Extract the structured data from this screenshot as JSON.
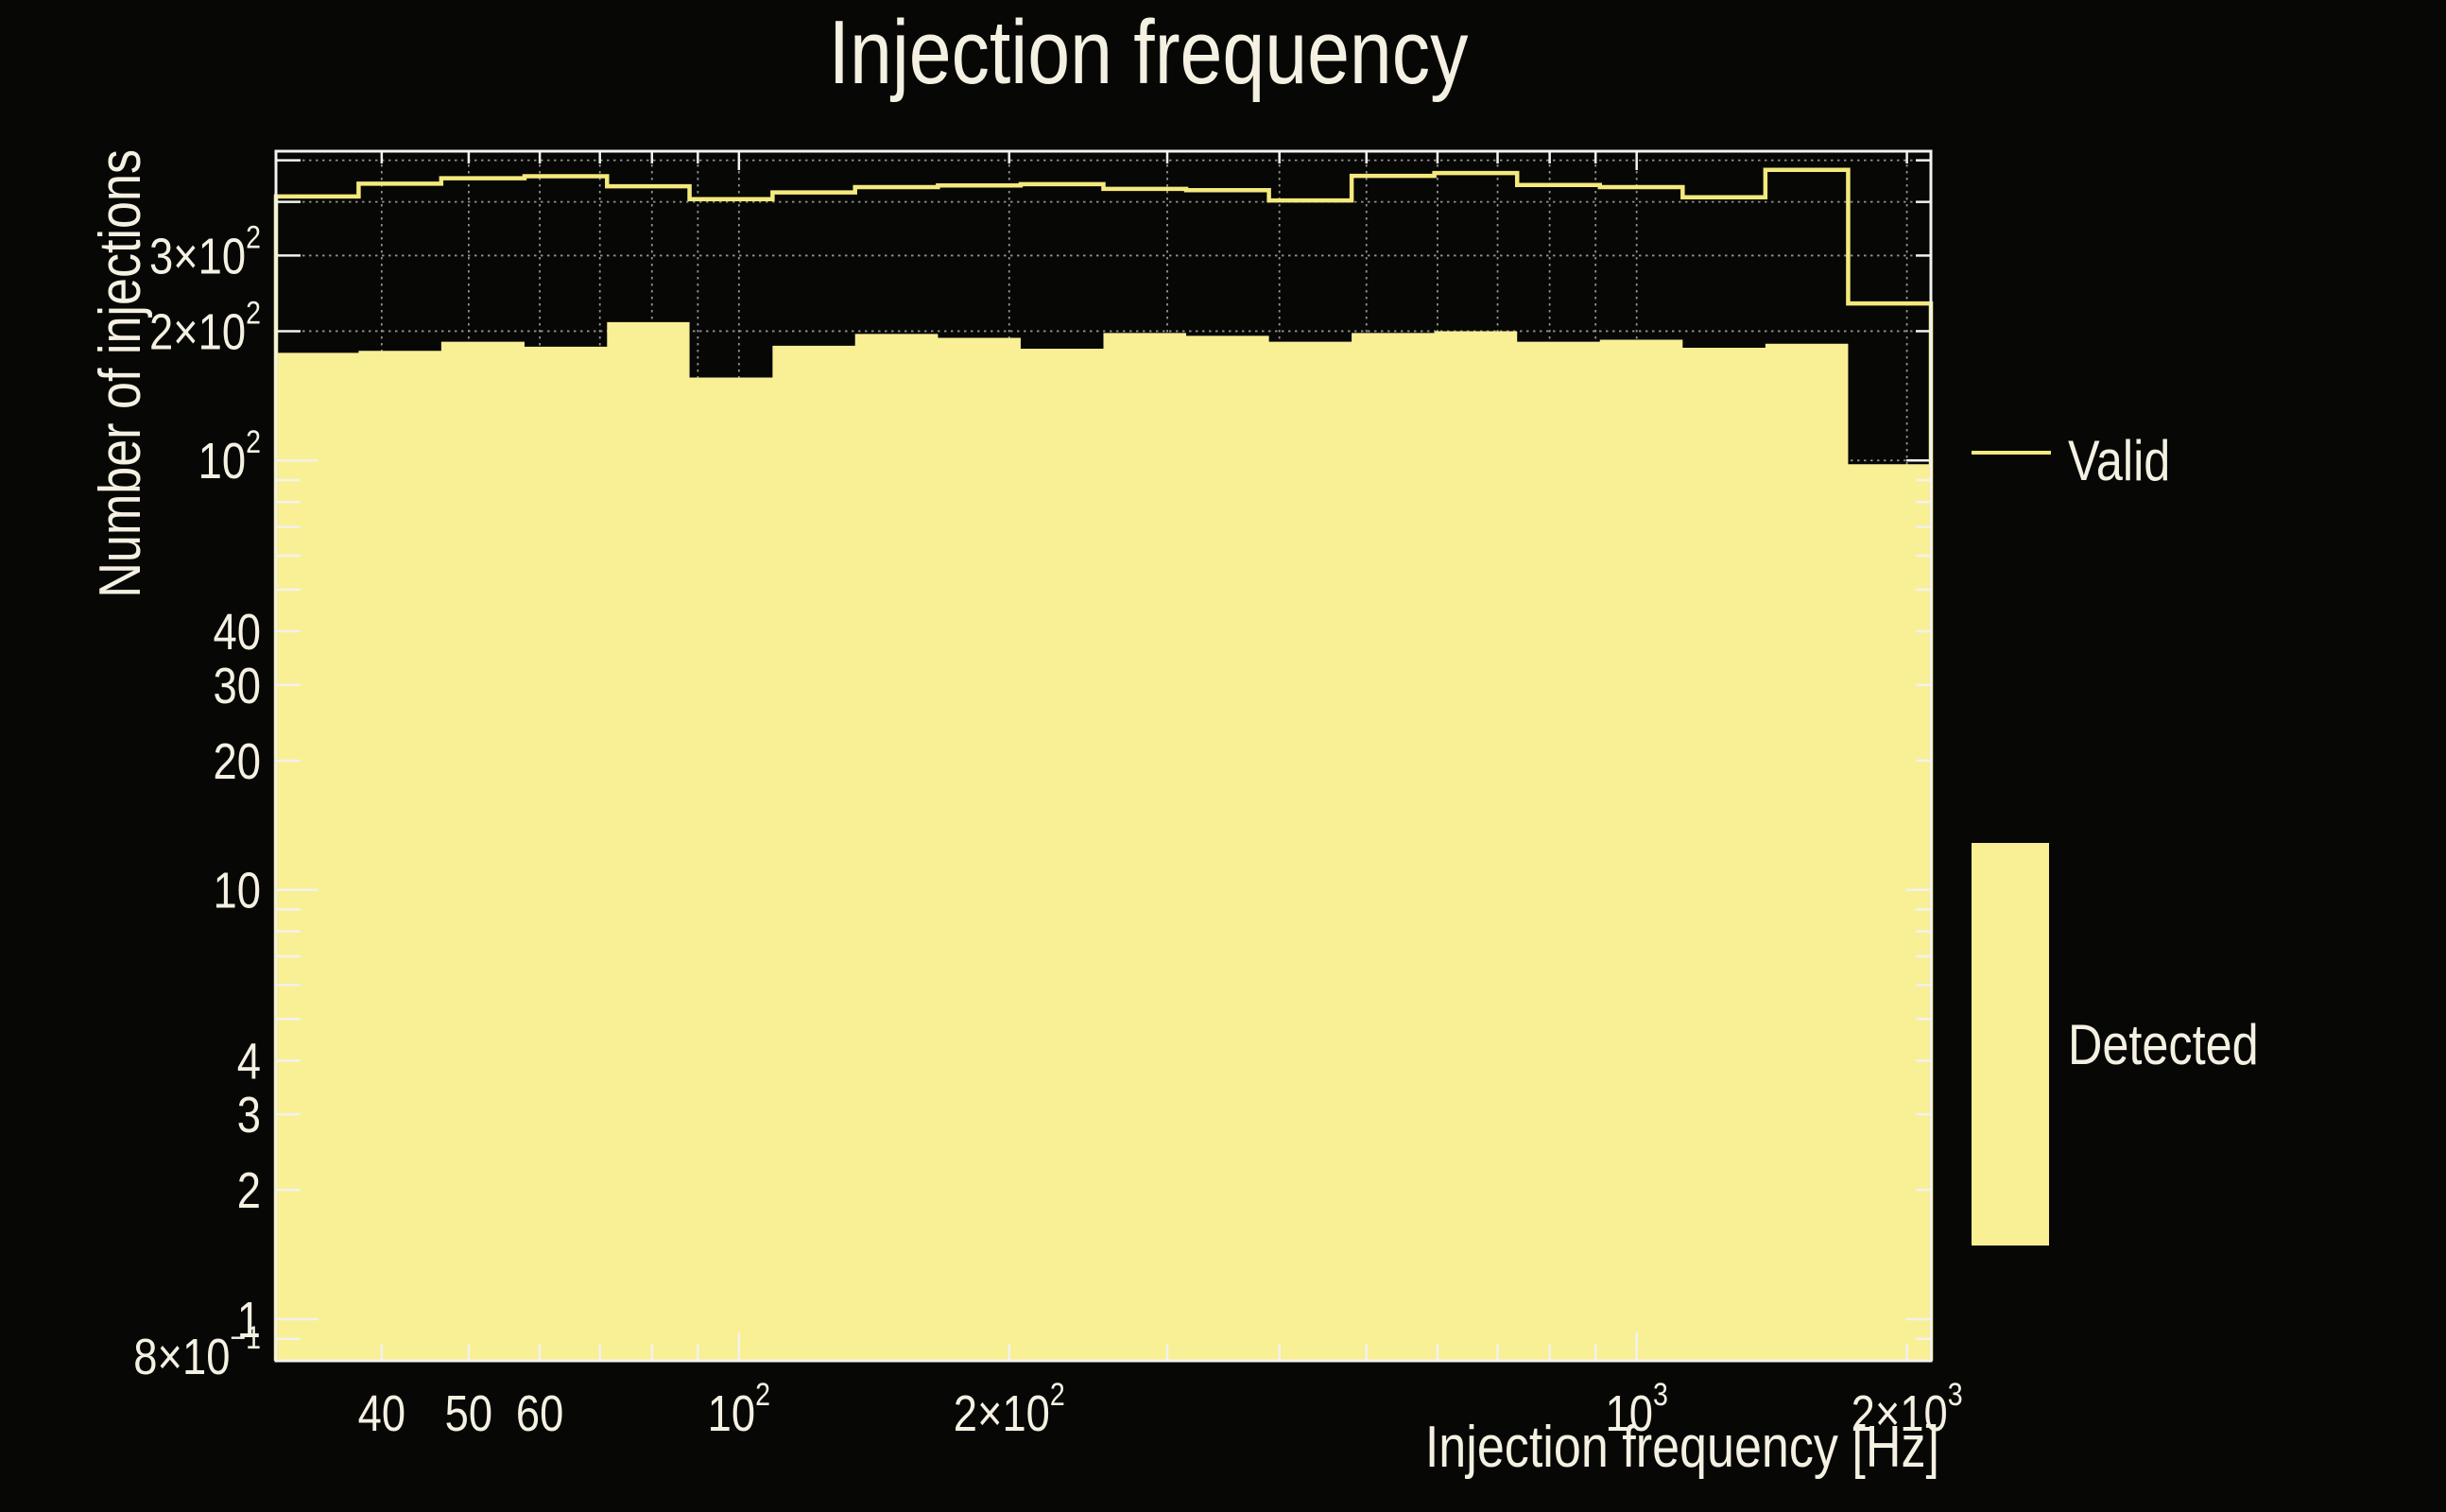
{
  "chart_data": {
    "type": "bar",
    "subtype": "log-log step histogram",
    "title": "Injection frequency",
    "xlabel": "Injection frequency [Hz]",
    "ylabel": "Number of injections",
    "x_scale": "log",
    "y_scale": "log",
    "xlim": [
      30.5,
      2127
    ],
    "ylim": [
      0.8,
      525
    ],
    "grid": true,
    "legend_position": "right",
    "bin_edges_hz": [
      30.5,
      37.7,
      46.6,
      57.7,
      71.3,
      88.1,
      109.0,
      134.7,
      166.6,
      206.0,
      254.7,
      314.9,
      389.4,
      481.4,
      595.2,
      736.0,
      910.0,
      1125.2,
      1391.2,
      1720.2,
      2127.0
    ],
    "series": [
      {
        "name": "Valid",
        "style": "line",
        "color": "#f4e97c",
        "values": [
          412,
          441,
          454,
          459,
          435,
          406,
          421,
          433,
          437,
          440,
          429,
          426,
          403,
          460,
          467,
          438,
          433,
          410,
          475,
          232
        ]
      },
      {
        "name": "Detected",
        "style": "fill",
        "color": "#f9ef95",
        "values": [
          178,
          180,
          189,
          184,
          210,
          156,
          185,
          197,
          193,
          182,
          198,
          195,
          189,
          198,
          200,
          189,
          191,
          183,
          187,
          98
        ]
      }
    ],
    "x_tick_labels": [
      {
        "value": 40,
        "text": "40"
      },
      {
        "value": 50,
        "text": "50"
      },
      {
        "value": 60,
        "text": "60"
      },
      {
        "value": 100,
        "base": "10",
        "exp": "2"
      },
      {
        "value": 200,
        "base": "2×10",
        "exp": "2"
      },
      {
        "value": 1000,
        "base": "10",
        "exp": "3"
      },
      {
        "value": 2000,
        "base": "2×10",
        "exp": "3"
      }
    ],
    "y_tick_labels": [
      {
        "value": 300,
        "base": "3×10",
        "exp": "2"
      },
      {
        "value": 200,
        "base": "2×10",
        "exp": "2"
      },
      {
        "value": 100,
        "base": "10",
        "exp": "2"
      },
      {
        "value": 40,
        "text": "40"
      },
      {
        "value": 30,
        "text": "30"
      },
      {
        "value": 20,
        "text": "20"
      },
      {
        "value": 10,
        "text": "10"
      },
      {
        "value": 4,
        "text": "4"
      },
      {
        "value": 3,
        "text": "3"
      },
      {
        "value": 2,
        "text": "2"
      },
      {
        "value": 1,
        "text": "1"
      },
      {
        "value": 0.8,
        "base": "8×10",
        "exp": "−1"
      }
    ],
    "colors": {
      "background": "#070706",
      "frame": "#f2f2ee",
      "grid": "#909090",
      "text": "#f5f1e2",
      "valid_line": "#f4e97c",
      "detected_fill": "#f9ef95"
    }
  }
}
